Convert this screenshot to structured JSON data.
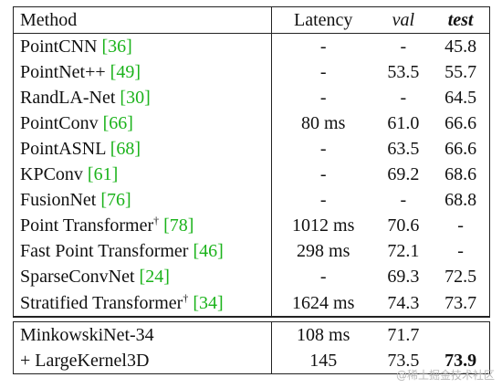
{
  "header": {
    "method": "Method",
    "latency": "Latency",
    "val": "val",
    "test": "test"
  },
  "rows": [
    {
      "name": "PointCNN ",
      "ref": "[36]",
      "dagger": "",
      "latency": "-",
      "val": "-",
      "test": "45.8"
    },
    {
      "name": "PointNet++ ",
      "ref": "[49]",
      "dagger": "",
      "latency": "-",
      "val": "53.5",
      "test": "55.7"
    },
    {
      "name": "RandLA-Net ",
      "ref": "[30]",
      "dagger": "",
      "latency": "-",
      "val": "-",
      "test": "64.5"
    },
    {
      "name": "PointConv ",
      "ref": "[66]",
      "dagger": "",
      "latency": "80 ms",
      "val": "61.0",
      "test": "66.6"
    },
    {
      "name": "PointASNL ",
      "ref": "[68]",
      "dagger": "",
      "latency": "-",
      "val": "63.5",
      "test": "66.6"
    },
    {
      "name": "KPConv ",
      "ref": "[61]",
      "dagger": "",
      "latency": "-",
      "val": "69.2",
      "test": "68.6"
    },
    {
      "name": "FusionNet ",
      "ref": "[76]",
      "dagger": "",
      "latency": "-",
      "val": "-",
      "test": "68.8"
    },
    {
      "name": "Point Transformer",
      "ref": "[78]",
      "dagger": "†",
      "latency": "1012 ms",
      "val": "70.6",
      "test": "-"
    },
    {
      "name": "Fast Point Transformer ",
      "ref": "[46]",
      "dagger": "",
      "latency": "298 ms",
      "val": "72.1",
      "test": "-"
    },
    {
      "name": "SparseConvNet ",
      "ref": "[24]",
      "dagger": "",
      "latency": "-",
      "val": "69.3",
      "test": "72.5"
    },
    {
      "name": "Stratified Transformer",
      "ref": "[34]",
      "dagger": "†",
      "latency": "1624 ms",
      "val": "74.3",
      "test": "73.7"
    }
  ],
  "ours": [
    {
      "name": "MinkowskiNet-34",
      "latency": "108 ms",
      "val": "71.7",
      "test": ""
    },
    {
      "name": "+ LargeKernel3D",
      "latency": "145",
      "val": "73.5",
      "test": "73.9"
    }
  ],
  "watermark": "@稀土掘金技术社区"
}
